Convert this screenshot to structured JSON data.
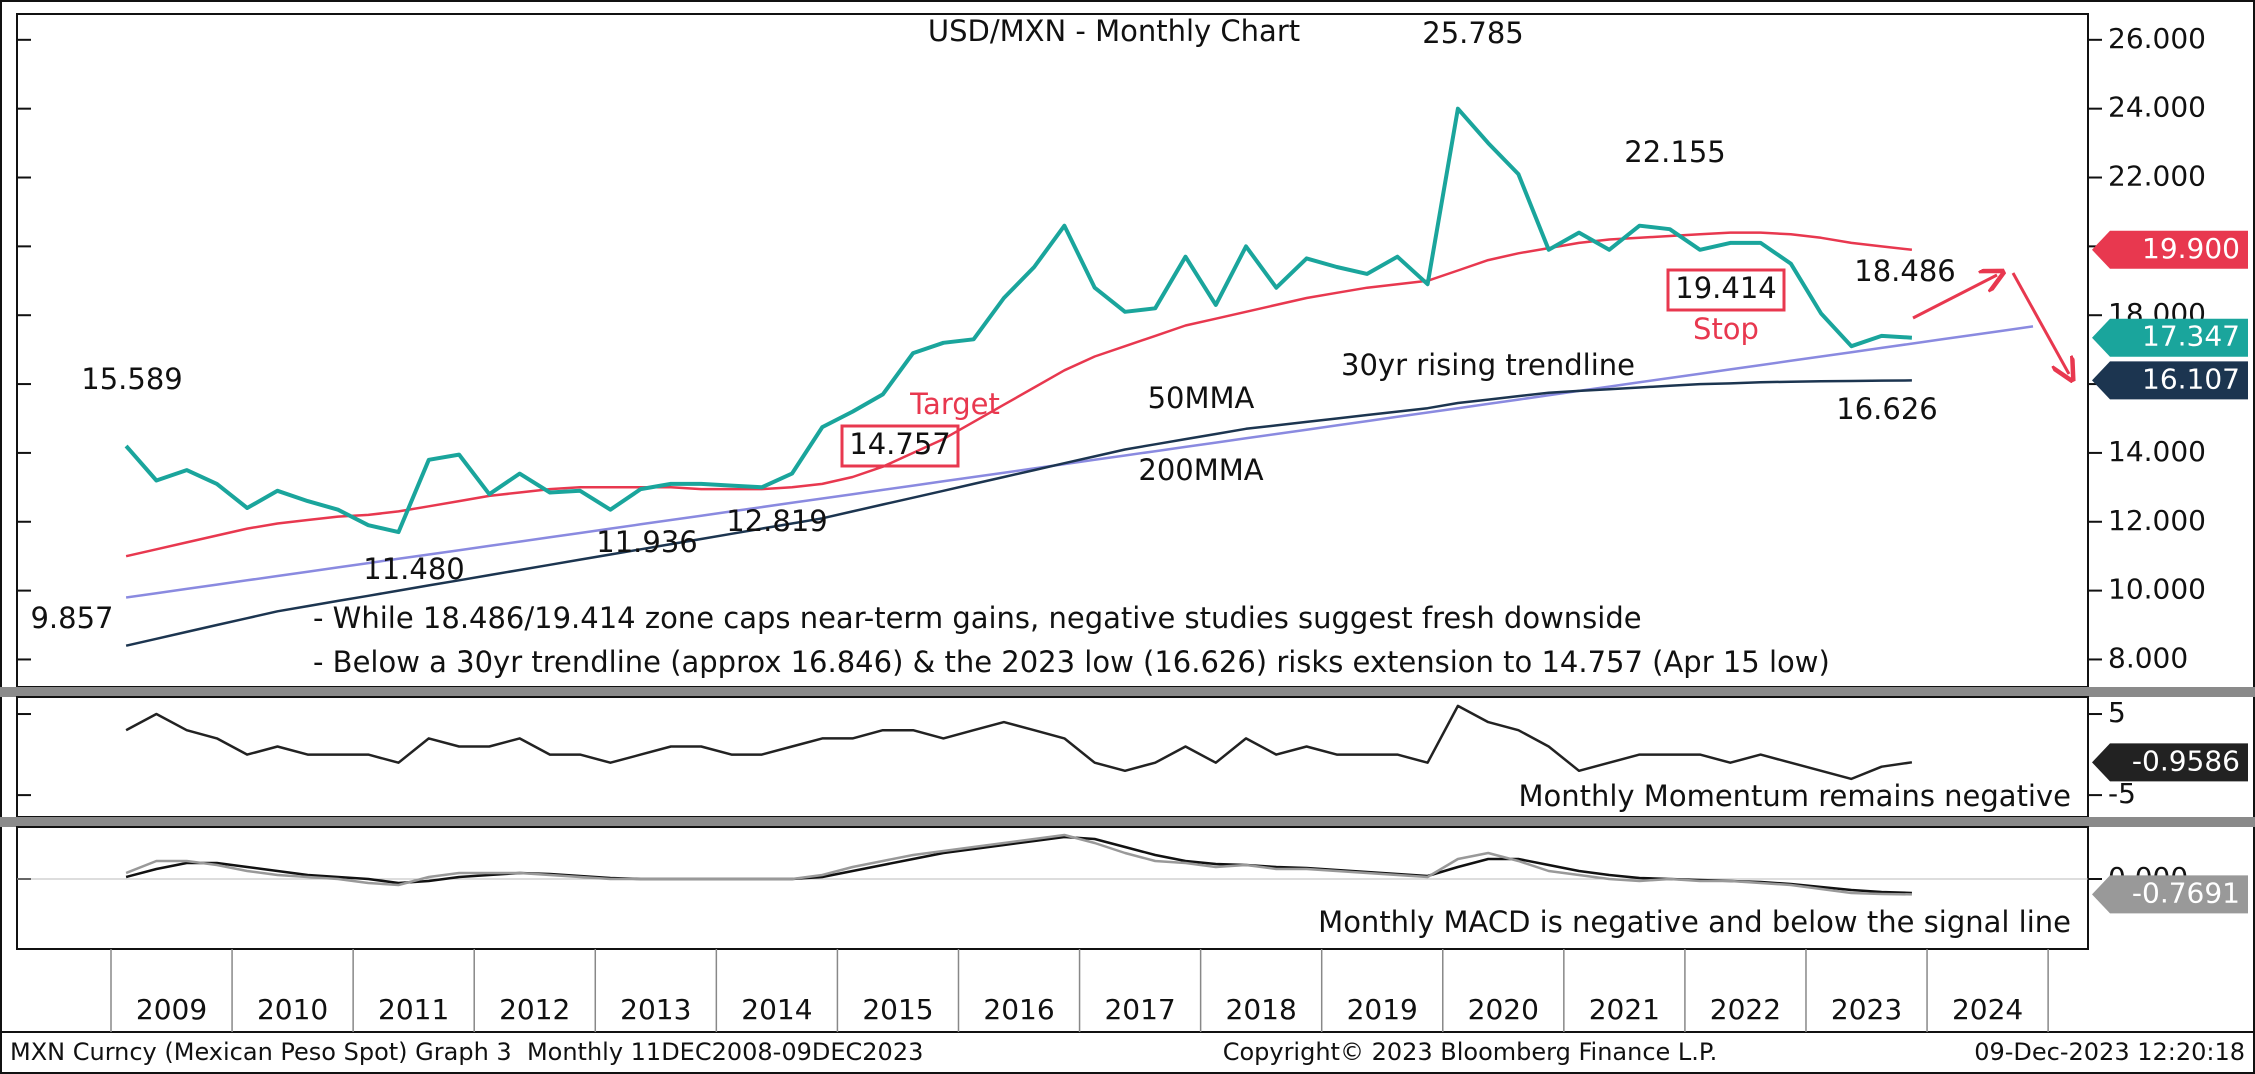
{
  "chart_data": [
    {
      "type": "line",
      "title": "USD/MXN - Monthly Chart",
      "categories": [
        "2009",
        null,
        null,
        null,
        "2010",
        null,
        null,
        null,
        "2011",
        null,
        null,
        null,
        "2012",
        null,
        null,
        null,
        "2013",
        null,
        null,
        null,
        "2014",
        null,
        null,
        null,
        "2015",
        null,
        null,
        null,
        "2016",
        null,
        null,
        null,
        "2017",
        null,
        null,
        null,
        "2018",
        null,
        null,
        null,
        "2019",
        null,
        null,
        null,
        "2020",
        null,
        null,
        null,
        "2021",
        null,
        null,
        null,
        "2022",
        null,
        null,
        null,
        "2023",
        null,
        null,
        null,
        "2024",
        null,
        null,
        null
      ],
      "ylim": [
        7.2,
        26.75
      ],
      "yticks": [
        {
          "value": 8,
          "label": "8.000"
        },
        {
          "value": 10,
          "label": "10.000"
        },
        {
          "value": 12,
          "label": "12.000"
        },
        {
          "value": 14,
          "label": "14.000"
        },
        {
          "value": 16,
          "label": "16.000"
        },
        {
          "value": 18,
          "label": "18.000"
        },
        {
          "value": 20,
          "label": "20.000"
        },
        {
          "value": 22,
          "label": "22.000"
        },
        {
          "value": 24,
          "label": "24.000"
        },
        {
          "value": 26,
          "label": "26.000"
        }
      ],
      "series": [
        {
          "color": "#1aa59c",
          "last_label": "17.347",
          "values": [
            14.2,
            13.2,
            13.5,
            13.1,
            12.4,
            12.9,
            12.6,
            12.35,
            11.9,
            11.7,
            13.8,
            13.95,
            12.8,
            13.4,
            12.85,
            12.9,
            12.35,
            12.95,
            13.1,
            13.1,
            13.05,
            13.0,
            13.4,
            14.75,
            15.2,
            15.7,
            16.9,
            17.2,
            17.3,
            18.5,
            19.4,
            20.6,
            18.8,
            18.1,
            18.2,
            19.7,
            18.3,
            20.0,
            18.8,
            19.65,
            19.4,
            19.2,
            19.7,
            18.9,
            24.0,
            23.0,
            22.1,
            19.9,
            20.4,
            19.9,
            20.6,
            20.5,
            19.9,
            20.1,
            20.1,
            19.5,
            18.05,
            17.1,
            17.4,
            17.347,
            null,
            null,
            null,
            null
          ]
        },
        {
          "name": "50MMA",
          "color": "#e8384f",
          "last_label": "19.900",
          "values": [
            11.0,
            11.2,
            11.4,
            11.6,
            11.8,
            11.95,
            12.05,
            12.15,
            12.2,
            12.3,
            12.45,
            12.6,
            12.75,
            12.85,
            12.95,
            13.0,
            13.0,
            13.0,
            13.0,
            12.95,
            12.95,
            12.95,
            13.0,
            13.1,
            13.3,
            13.6,
            14.0,
            14.4,
            14.9,
            15.4,
            15.9,
            16.4,
            16.8,
            17.1,
            17.4,
            17.7,
            17.9,
            18.1,
            18.3,
            18.5,
            18.65,
            18.8,
            18.9,
            19.0,
            19.3,
            19.6,
            19.8,
            19.95,
            20.1,
            20.2,
            20.25,
            20.3,
            20.35,
            20.4,
            20.4,
            20.35,
            20.25,
            20.1,
            20.0,
            19.9,
            null,
            null,
            null,
            null
          ]
        },
        {
          "name": "200MMA",
          "color": "#1c3550",
          "last_label": "16.107",
          "values": [
            8.4,
            8.6,
            8.8,
            9.0,
            9.2,
            9.4,
            9.55,
            9.7,
            9.85,
            10.0,
            10.15,
            10.3,
            10.45,
            10.6,
            10.75,
            10.9,
            11.05,
            11.2,
            11.35,
            11.5,
            11.65,
            11.8,
            11.95,
            12.1,
            12.3,
            12.5,
            12.7,
            12.9,
            13.1,
            13.3,
            13.5,
            13.7,
            13.9,
            14.1,
            14.25,
            14.4,
            14.55,
            14.7,
            14.8,
            14.9,
            15.0,
            15.1,
            15.2,
            15.3,
            15.45,
            15.55,
            15.65,
            15.75,
            15.8,
            15.85,
            15.9,
            15.95,
            16.0,
            16.02,
            16.05,
            16.07,
            16.08,
            16.09,
            16.1,
            16.107,
            null,
            null,
            null,
            null
          ]
        },
        {
          "name": "30yr rising trendline",
          "color": "#8a8ae0",
          "values": [
            9.8,
            9.925,
            10.05,
            10.175,
            10.3,
            10.425,
            10.55,
            10.675,
            10.8,
            10.925,
            11.05,
            11.175,
            11.3,
            11.425,
            11.55,
            11.675,
            11.8,
            11.925,
            12.05,
            12.175,
            12.3,
            12.425,
            12.55,
            12.675,
            12.8,
            12.925,
            13.05,
            13.175,
            13.3,
            13.425,
            13.55,
            13.675,
            13.8,
            13.925,
            14.05,
            14.175,
            14.3,
            14.425,
            14.55,
            14.675,
            14.8,
            14.925,
            15.05,
            15.175,
            15.3,
            15.425,
            15.55,
            15.675,
            15.8,
            15.925,
            16.05,
            16.175,
            16.3,
            16.425,
            16.55,
            16.675,
            16.8,
            16.925,
            17.05,
            17.175,
            17.3,
            17.425,
            17.55,
            17.675
          ]
        }
      ],
      "annotations": [
        "25.785",
        "22.155",
        "18.486",
        "15.589",
        "9.857",
        "11.480",
        "11.936",
        "12.819",
        "16.626",
        "14.757",
        "19.414",
        "Target",
        "Stop",
        "- While 18.486/19.414 zone caps near-term gains, negative studies suggest fresh downside",
        "- Below a 30yr trendline (approx 16.846) & the 2023 low (16.626) risks extension to 14.757 (Apr 15 low)"
      ]
    },
    {
      "type": "line",
      "ylim": [
        -7.7,
        7.1
      ],
      "yticks": [
        5,
        -5
      ],
      "annotations": [
        "Monthly Momentum remains negative"
      ],
      "series": [
        {
          "color": "#222222",
          "last_label": "-0.9586",
          "values": [
            3,
            5,
            3,
            2,
            0,
            1,
            0,
            0,
            0,
            -1,
            2,
            1,
            1,
            2,
            0,
            0,
            -1,
            0,
            1,
            1,
            0,
            0,
            1,
            2,
            2,
            3,
            3,
            2,
            3,
            4,
            3,
            2,
            -1,
            -2,
            -1,
            1,
            -1,
            2,
            0,
            1,
            0,
            0,
            0,
            -1,
            6,
            4,
            3,
            1,
            -2,
            -1,
            0,
            0,
            0,
            -1,
            0,
            -1,
            -2,
            -3,
            -1.5,
            -0.9586,
            null,
            null,
            null,
            null
          ]
        }
      ]
    },
    {
      "type": "line",
      "ylim": [
        -3.5,
        2.6
      ],
      "yticks": [
        {
          "value": 0,
          "label": "0.000"
        }
      ],
      "annotations": [
        "Monthly MACD is negative and below the signal line"
      ],
      "series": [
        {
          "color": "#999999",
          "last_label": "-0.7691",
          "values": [
            0.3,
            0.9,
            0.9,
            0.7,
            0.4,
            0.2,
            0.1,
            0,
            -0.2,
            -0.3,
            0.1,
            0.3,
            0.3,
            0.3,
            0.2,
            0.1,
            0,
            0,
            0,
            0,
            0,
            0,
            0,
            0.2,
            0.6,
            0.9,
            1.2,
            1.4,
            1.6,
            1.8,
            2.0,
            2.2,
            1.8,
            1.3,
            0.9,
            0.8,
            0.6,
            0.7,
            0.5,
            0.5,
            0.4,
            0.3,
            0.2,
            0.1,
            1.0,
            1.3,
            0.9,
            0.4,
            0.2,
            0,
            -0.1,
            0,
            -0.1,
            -0.1,
            -0.2,
            -0.3,
            -0.5,
            -0.7,
            -0.75,
            -0.7691,
            null,
            null,
            null,
            null
          ]
        },
        {
          "color": "#111111",
          "values": [
            0.1,
            0.5,
            0.8,
            0.8,
            0.6,
            0.4,
            0.2,
            0.1,
            0,
            -0.2,
            -0.1,
            0.1,
            0.2,
            0.3,
            0.25,
            0.15,
            0.05,
            0,
            0,
            0,
            0,
            0,
            0,
            0.1,
            0.4,
            0.7,
            1.0,
            1.3,
            1.5,
            1.7,
            1.9,
            2.1,
            2.0,
            1.6,
            1.2,
            0.9,
            0.75,
            0.7,
            0.6,
            0.55,
            0.45,
            0.35,
            0.25,
            0.15,
            0.6,
            1.0,
            1.0,
            0.7,
            0.4,
            0.2,
            0.05,
            0,
            -0.05,
            -0.1,
            -0.15,
            -0.25,
            -0.4,
            -0.55,
            -0.65,
            -0.7,
            null,
            null,
            null,
            null
          ]
        }
      ]
    }
  ],
  "footer": [
    "MXN Curncy (Mexican Peso Spot) Graph 3  Monthly 11DEC2008-09DEC2023",
    "Copyright© 2023 Bloomberg Finance L.P.",
    "09-Dec-2023 12:20:18"
  ]
}
